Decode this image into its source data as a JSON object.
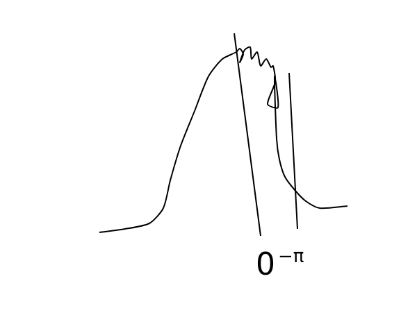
{
  "chart_data": {
    "type": "line",
    "annotations": [
      "0",
      "−π"
    ],
    "xlim": [
      0,
      380
    ],
    "ylim": [
      0,
      320
    ],
    "tick_labels": false,
    "grid": false,
    "series": [
      {
        "color": "#000000",
        "marker": "none",
        "line_style": "solid",
        "x": [
          3,
          40,
          75,
          95,
          105,
          120,
          140,
          160,
          180,
          200,
          205,
          210,
          205,
          212,
          220,
          222,
          230,
          235,
          243,
          250,
          253,
          256,
          245,
          260,
          255,
          258,
          262,
          270,
          285,
          300,
          320,
          360
        ],
        "values": [
          15,
          20,
          28,
          50,
          90,
          140,
          190,
          240,
          265,
          275,
          280,
          272,
          260,
          278,
          282,
          265,
          275,
          255,
          265,
          253,
          255,
          232,
          200,
          195,
          240,
          150,
          120,
          95,
          75,
          60,
          50,
          53
        ]
      },
      {
        "color": "#000000",
        "marker": "none",
        "line_style": "solid",
        "x": [
          197,
          235
        ],
        "values": [
          302,
          10
        ]
      },
      {
        "color": "#000000",
        "marker": "none",
        "line_style": "solid",
        "x": [
          276,
          288
        ],
        "values": [
          245,
          20
        ]
      }
    ]
  }
}
